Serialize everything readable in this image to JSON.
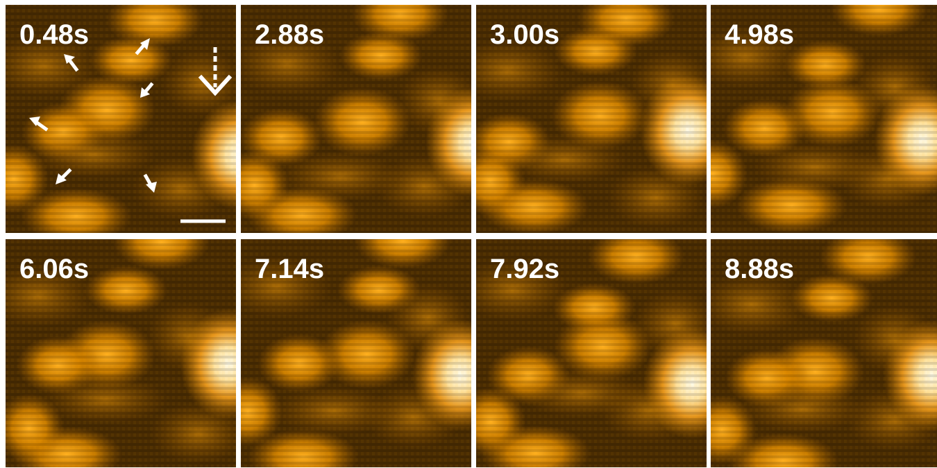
{
  "panels": [
    {
      "label": "0.48s"
    },
    {
      "label": "2.88s"
    },
    {
      "label": "3.00s"
    },
    {
      "label": "4.98s"
    },
    {
      "label": "6.06s"
    },
    {
      "label": "7.14s"
    },
    {
      "label": "7.92s"
    },
    {
      "label": "8.88s"
    }
  ]
}
